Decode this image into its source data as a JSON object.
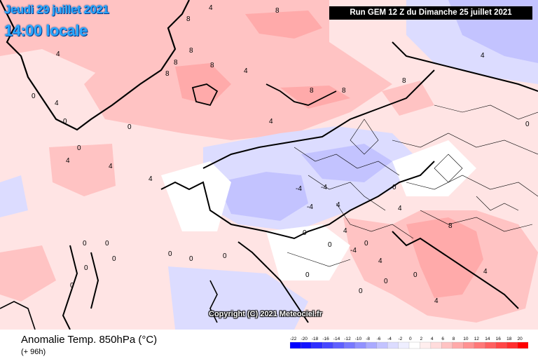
{
  "header": {
    "date": "Jeudi 29 juillet 2021",
    "time": "14:00 locale",
    "run": "Run GEM 12 Z du Dimanche 25 juillet 2021"
  },
  "copyright": "Copyright (C) 2021 Meteociel.fr",
  "legend": {
    "title": "Anomalie Temp. 850hPa (°C)",
    "subtitle": "(+ 96h)",
    "ticks": [
      "-22",
      "-20",
      "-18",
      "-16",
      "-14",
      "-12",
      "-10",
      "-8",
      "-6",
      "-4",
      "-2",
      "0",
      "2",
      "4",
      "6",
      "8",
      "10",
      "12",
      "14",
      "16",
      "18",
      "20"
    ],
    "colors": [
      "#0000ff",
      "#1414ff",
      "#2d2dff",
      "#4646ff",
      "#5f5fff",
      "#7878ff",
      "#9191ff",
      "#aaaaff",
      "#c3c3ff",
      "#dcdcff",
      "#eeeeff",
      "#ffffff",
      "#ffeeee",
      "#ffdcdc",
      "#ffc3c3",
      "#ffaaaa",
      "#ff9191",
      "#ff7878",
      "#ff5f5f",
      "#ff4646",
      "#ff2d2d",
      "#ff0000"
    ]
  },
  "map_labels": [
    "8",
    "8",
    "4",
    "8",
    "4",
    "8",
    "8",
    "8",
    "4",
    "0",
    "4",
    "0",
    "4",
    "0",
    "0",
    "4",
    "4",
    "-4",
    "-4",
    "-4",
    "0",
    "0",
    "-4",
    "0",
    "4",
    "0",
    "4",
    "4",
    "4",
    "0",
    "8",
    "8",
    "8",
    "4",
    "0",
    "0",
    "0",
    "0",
    "0",
    "0",
    "0",
    "0",
    "4",
    "0",
    "4",
    "8",
    "4",
    "0",
    "0",
    "0"
  ],
  "colors": {
    "title_accent": "#2aa8ff",
    "warm_anomaly": "#ffc3c3",
    "cold_anomaly": "#c3c3ff"
  }
}
